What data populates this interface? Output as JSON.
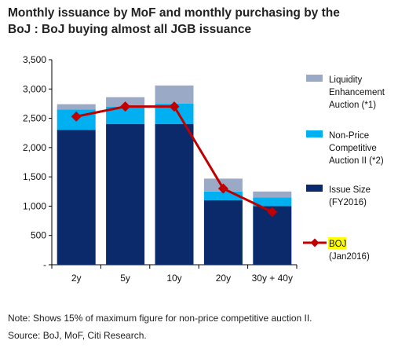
{
  "title_line1": "Monthly issuance by MoF and monthly purchasing by the",
  "title_line2": "BoJ : BoJ buying almost all JGB issuance",
  "note": "Note: Shows 15% of maximum figure for non-price competitive auction II.",
  "source": "Source: BoJ, MoF, Citi Research.",
  "colors": {
    "issue_size": "#0a2a6b",
    "non_price": "#00b0f0",
    "liquidity": "#9aa9c6",
    "boj": "#c00000",
    "boj_legend_highlight": "#ffff00"
  },
  "legend": [
    {
      "key": "liquidity",
      "lines": [
        "Liquidity",
        "Enhancement",
        "Auction (*1)"
      ]
    },
    {
      "key": "non_price",
      "lines": [
        "Non-Price",
        "Competitive",
        "Auction II (*2)"
      ]
    },
    {
      "key": "issue_size",
      "lines": [
        "Issue Size",
        "(FY2016)"
      ]
    },
    {
      "key": "boj",
      "lines": [
        "BOJ",
        "(Jan2016)"
      ]
    }
  ],
  "chart_data": {
    "type": "bar",
    "stacked": true,
    "categories": [
      "2y",
      "5y",
      "10y",
      "20y",
      "30y + 40y"
    ],
    "series": [
      {
        "name": "Issue Size (FY2016)",
        "key": "issue_size",
        "values": [
          2300,
          2400,
          2400,
          1100,
          1000
        ]
      },
      {
        "name": "Non-Price Competitive Auction II (*2)",
        "key": "non_price",
        "values": [
          350,
          300,
          350,
          150,
          150
        ]
      },
      {
        "name": "Liquidity Enhancement Auction (*1)",
        "key": "liquidity",
        "values": [
          90,
          160,
          310,
          220,
          100
        ]
      }
    ],
    "line_series": {
      "name": "BOJ (Jan2016)",
      "key": "boj",
      "values": [
        2530,
        2700,
        2700,
        1300,
        900
      ]
    },
    "ylim": [
      0,
      3500
    ],
    "yticks": [
      0,
      500,
      1000,
      1500,
      2000,
      2500,
      3000,
      3500
    ],
    "ytick_labels": [
      "-",
      "500",
      "1,000",
      "1,500",
      "2,000",
      "2,500",
      "3,000",
      "3,500"
    ],
    "grid": false,
    "legend_position": "right"
  }
}
